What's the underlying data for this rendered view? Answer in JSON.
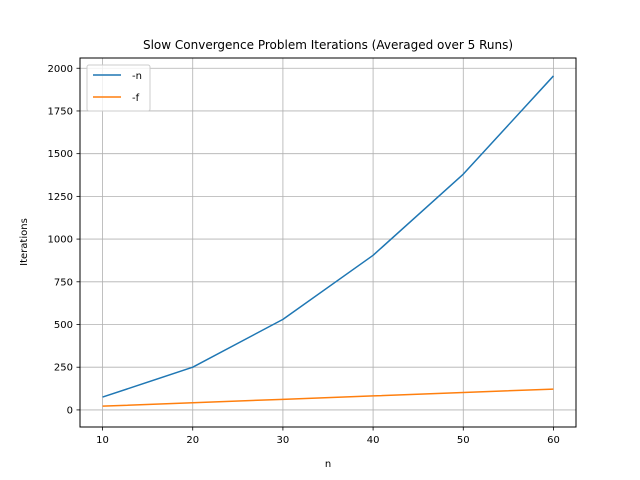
{
  "chart_data": {
    "type": "line",
    "title": "Slow Convergence Problem Iterations (Averaged over 5 Runs)",
    "xlabel": "n",
    "ylabel": "Iterations",
    "x": [
      10,
      20,
      30,
      40,
      50,
      60
    ],
    "xticks": [
      10,
      20,
      30,
      40,
      50,
      60
    ],
    "yticks": [
      0,
      250,
      500,
      750,
      1000,
      1250,
      1500,
      1750,
      2000
    ],
    "xlim": [
      7.5,
      62.5
    ],
    "ylim": [
      -100,
      2060
    ],
    "grid": true,
    "legend_position": "top-left",
    "series": [
      {
        "name": "-n",
        "color": "#1f77b4",
        "values": [
          75,
          250,
          530,
          905,
          1380,
          1955
        ]
      },
      {
        "name": "-f",
        "color": "#ff7f0e",
        "values": [
          22,
          42,
          62,
          82,
          102,
          122
        ]
      }
    ]
  }
}
